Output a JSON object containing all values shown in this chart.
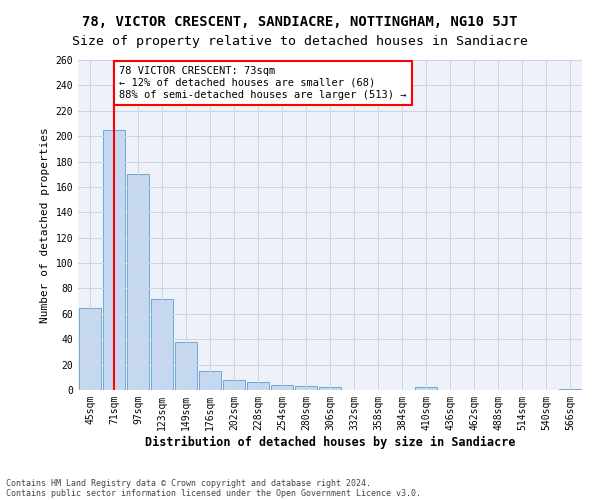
{
  "title": "78, VICTOR CRESCENT, SANDIACRE, NOTTINGHAM, NG10 5JT",
  "subtitle": "Size of property relative to detached houses in Sandiacre",
  "xlabel": "Distribution of detached houses by size in Sandiacre",
  "ylabel": "Number of detached properties",
  "categories": [
    "45sqm",
    "71sqm",
    "97sqm",
    "123sqm",
    "149sqm",
    "176sqm",
    "202sqm",
    "228sqm",
    "254sqm",
    "280sqm",
    "306sqm",
    "332sqm",
    "358sqm",
    "384sqm",
    "410sqm",
    "436sqm",
    "462sqm",
    "488sqm",
    "514sqm",
    "540sqm",
    "566sqm"
  ],
  "values": [
    65,
    205,
    170,
    72,
    38,
    15,
    8,
    6,
    4,
    3,
    2,
    0,
    0,
    0,
    2,
    0,
    0,
    0,
    0,
    0,
    1
  ],
  "bar_color": "#c5d8f0",
  "bar_edge_color": "#6aaad4",
  "annotation_text": "78 VICTOR CRESCENT: 73sqm\n← 12% of detached houses are smaller (68)\n88% of semi-detached houses are larger (513) →",
  "annotation_box_color": "white",
  "annotation_box_edge_color": "red",
  "vline_color": "red",
  "vline_x": 1,
  "ylim": [
    0,
    260
  ],
  "yticks": [
    0,
    20,
    40,
    60,
    80,
    100,
    120,
    140,
    160,
    180,
    200,
    220,
    240,
    260
  ],
  "bg_color": "#eef2f8",
  "grid_color": "#c8d4e4",
  "footer1": "Contains HM Land Registry data © Crown copyright and database right 2024.",
  "footer2": "Contains public sector information licensed under the Open Government Licence v3.0.",
  "title_fontsize": 10,
  "subtitle_fontsize": 9.5,
  "xlabel_fontsize": 8.5,
  "ylabel_fontsize": 8,
  "tick_fontsize": 7,
  "annotation_fontsize": 7.5,
  "footer_fontsize": 6
}
